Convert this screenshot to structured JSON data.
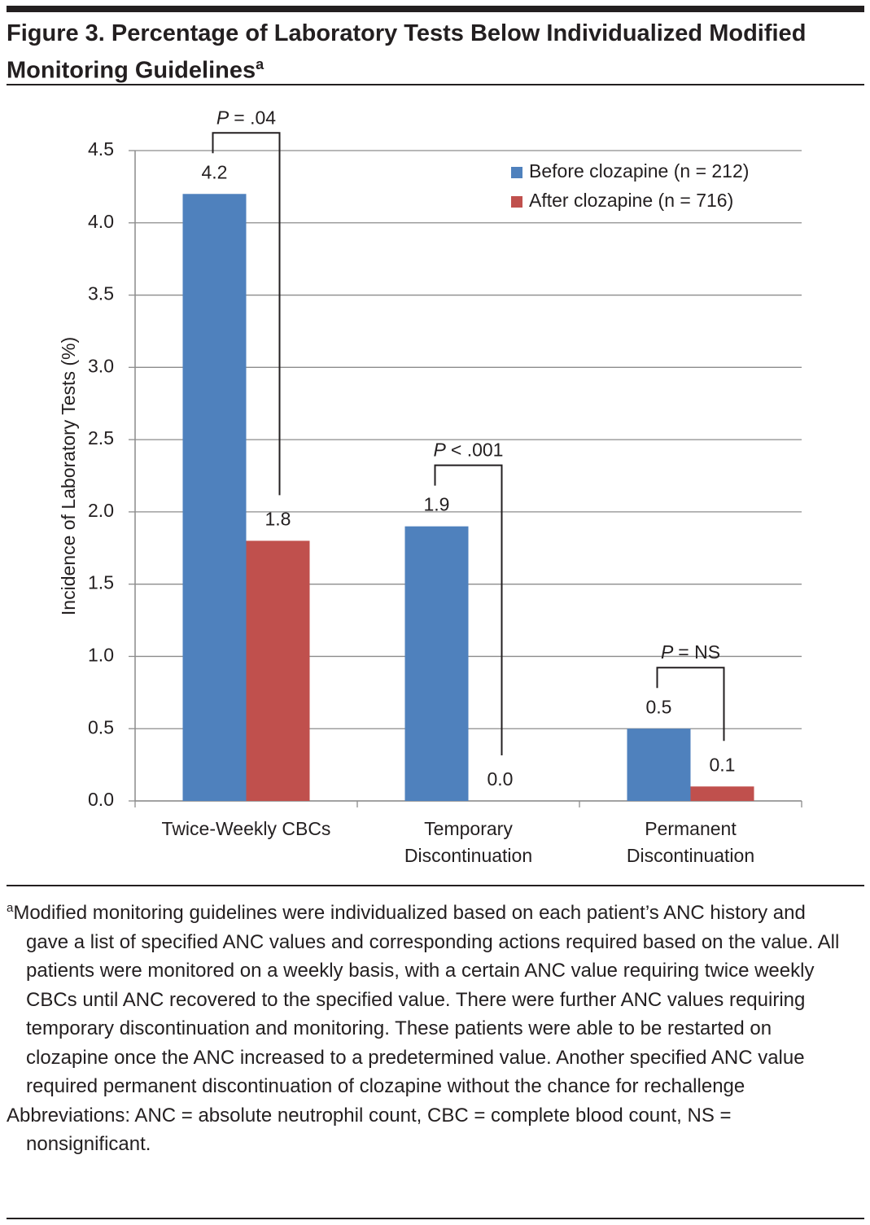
{
  "chart_data": {
    "type": "bar",
    "title": "Figure 3. Percentage of Laboratory Tests Below Individualized Modified Monitoring Guidelines",
    "title_superscript": "a",
    "y_label": "Incidence of Laboratory Tests (%)",
    "categories": [
      "Twice-Weekly CBCs",
      "Temporary Discontinuation",
      "Permanent Discontinuation"
    ],
    "series": [
      {
        "name": "Before clozapine (n = 212)",
        "color": "#4f81bd",
        "values": [
          4.2,
          1.9,
          0.5
        ],
        "value_labels": [
          "4.2",
          "1.9",
          "0.5"
        ]
      },
      {
        "name": "After clozapine (n = 716)",
        "color": "#c0504d",
        "values": [
          1.8,
          0,
          0.1
        ],
        "value_labels": [
          "1.8",
          "0.0",
          "0.1"
        ]
      }
    ],
    "ylim": [
      0,
      4.5
    ],
    "yticks": [
      {
        "value": 0,
        "label": "0.0"
      },
      {
        "value": 0.5,
        "label": "0.5"
      },
      {
        "value": 1,
        "label": "1.0"
      },
      {
        "value": 1.5,
        "label": "1.5"
      },
      {
        "value": 2,
        "label": "2.0"
      },
      {
        "value": 2.5,
        "label": "2.5"
      },
      {
        "value": 3,
        "label": "3.0"
      },
      {
        "value": 3.5,
        "label": "3.5"
      },
      {
        "value": 4,
        "label": "4.0"
      },
      {
        "value": 4.5,
        "label": "4.5"
      }
    ],
    "grid": true,
    "legend": "upper right",
    "annotations": [
      {
        "symbol": "P",
        "text": "= .04"
      },
      {
        "symbol": "P",
        "text": "< .001"
      },
      {
        "symbol": "P",
        "text": "= NS"
      }
    ],
    "footnote_marker": "a",
    "footnote": "Modified monitoring guidelines were individualized based on each patient’s ANC history and gave a list of specified ANC values and corresponding actions required based on the value. All patients were monitored on a weekly basis, with a certain ANC value requiring twice weekly CBCs until ANC recovered to the specified value. There were further ANC values requiring temporary discontinuation and monitoring. These patients were able to be restarted on clozapine once the ANC increased to a predetermined value. Another specified ANC value required permanent discontinuation of clozapine without the chance for rechallenge",
    "abbreviations": "Abbreviations: ANC = absolute neutrophil count, CBC = complete blood count, NS = nonsignificant."
  }
}
